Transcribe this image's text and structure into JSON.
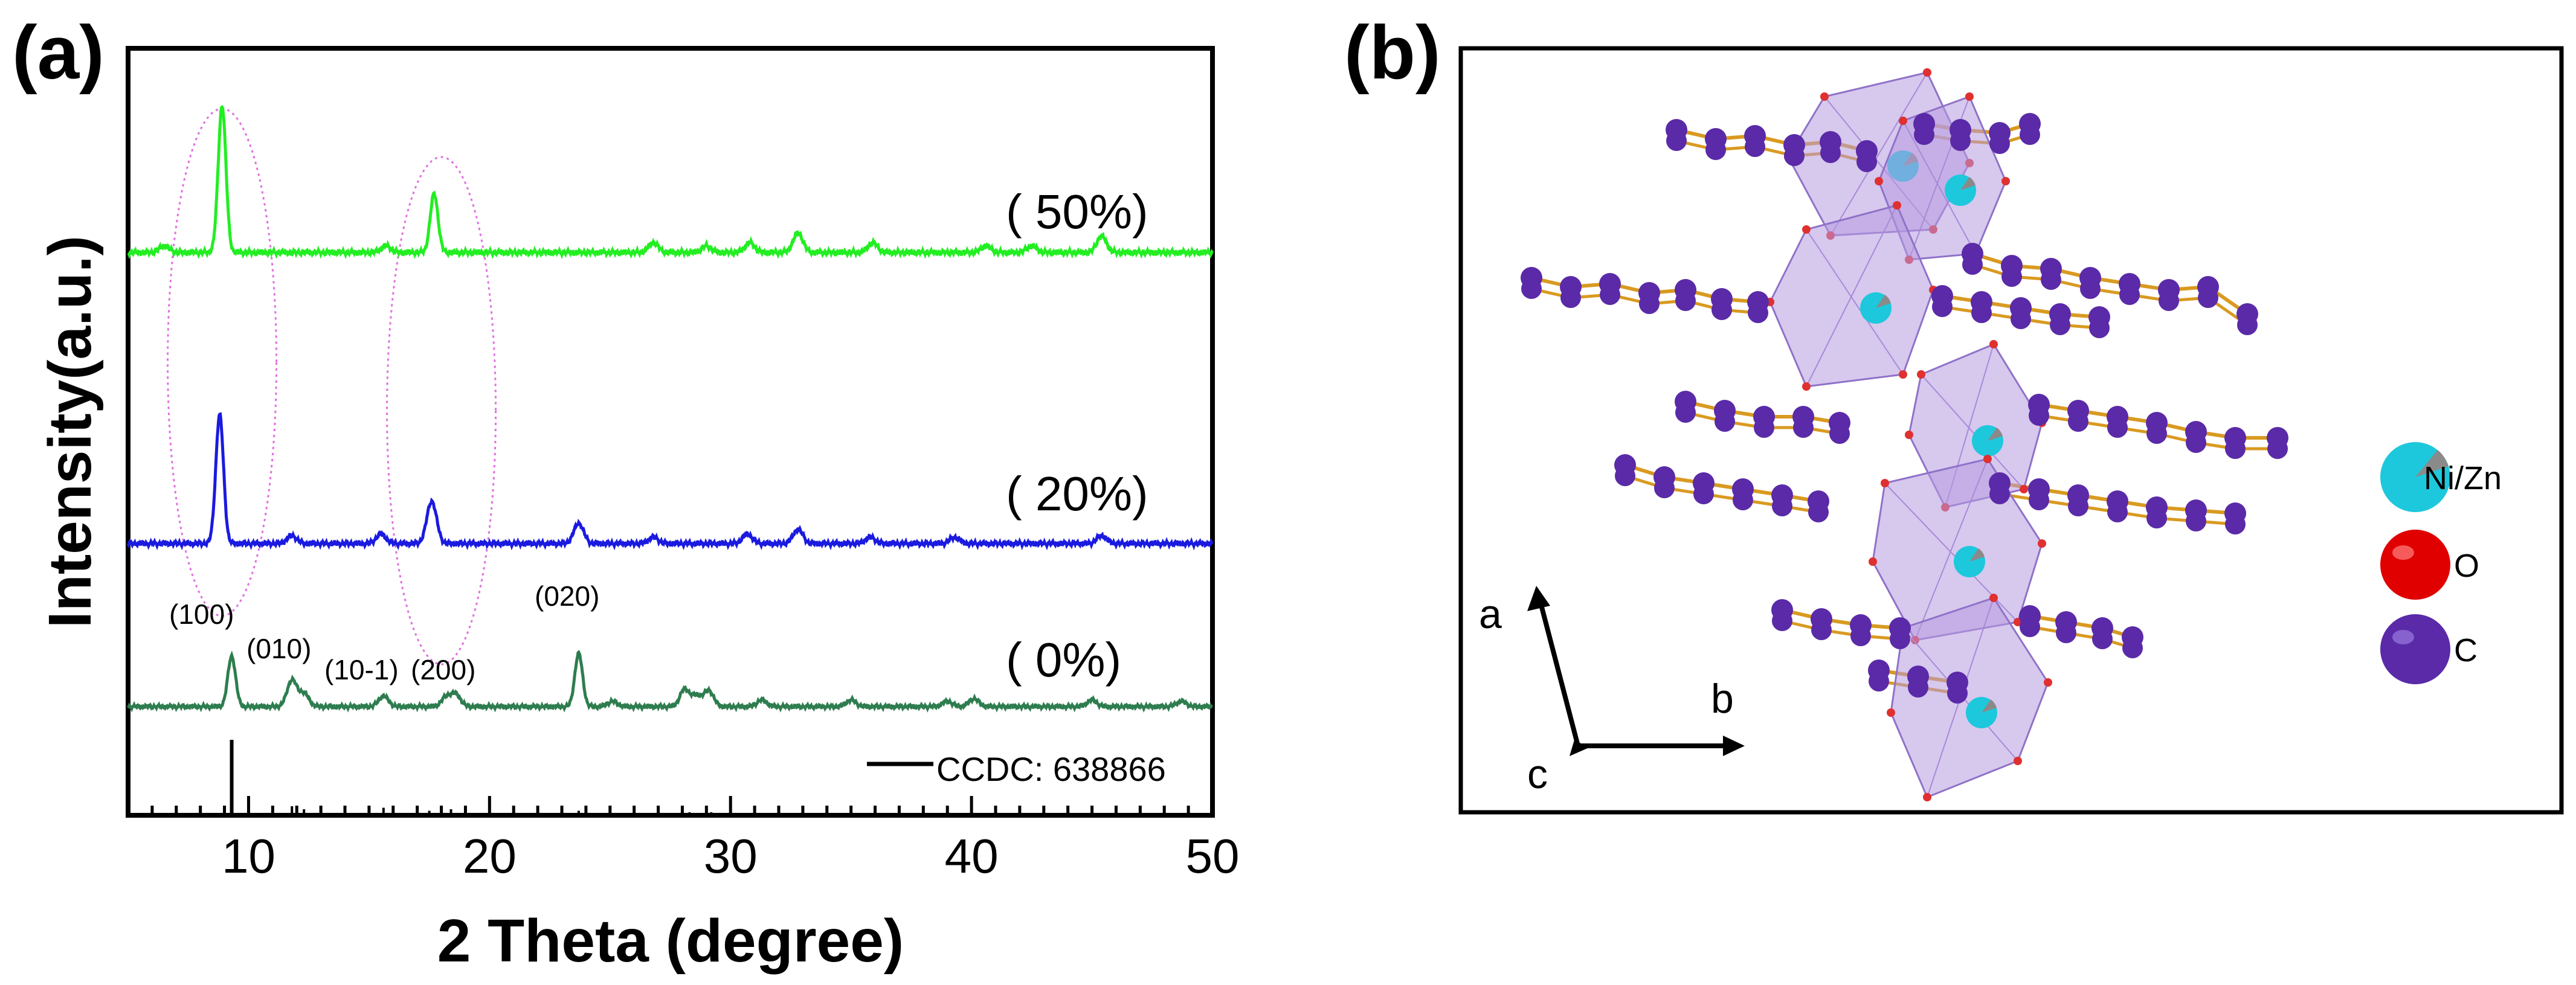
{
  "panel_a": {
    "letter": "(a)",
    "reference_label": "CCDC: 638866"
  },
  "panel_b": {
    "letter": "(b)",
    "legend": [
      {
        "label": "Ni/Zn",
        "color": "#1ec8dc",
        "accent": "#8a8a8a"
      },
      {
        "label": "O",
        "color": "#e00000"
      },
      {
        "label": "C",
        "color": "#5a2aa8"
      }
    ],
    "axes": {
      "a": "a",
      "b": "b",
      "c": "c"
    },
    "colors": {
      "polyhedron": "#b79be0",
      "bond": "#d99a20",
      "oxygen_small": "#e03030"
    }
  },
  "chart_data": {
    "type": "line",
    "xlabel": "2 Theta (degree)",
    "ylabel": "Intensity(a.u.)",
    "xlim": [
      5,
      50
    ],
    "xticks": [
      10,
      20,
      30,
      40,
      50
    ],
    "grid": false,
    "series": [
      {
        "name": "( 50%)",
        "color": "#22ee22",
        "peaks": [
          [
            6.5,
            4
          ],
          [
            8.9,
            90
          ],
          [
            15.7,
            4
          ],
          [
            17.7,
            36
          ],
          [
            26.8,
            6
          ],
          [
            29.0,
            4
          ],
          [
            30.8,
            6
          ],
          [
            32.8,
            12
          ],
          [
            35.9,
            6
          ],
          [
            40.6,
            4
          ],
          [
            42.5,
            4
          ],
          [
            45.4,
            10
          ]
        ]
      },
      {
        "name": "( 20%)",
        "color": "#1a1ae0",
        "peaks": [
          [
            8.8,
            82
          ],
          [
            11.8,
            5
          ],
          [
            15.5,
            6
          ],
          [
            17.6,
            27
          ],
          [
            23.7,
            13
          ],
          [
            26.8,
            4
          ],
          [
            30.7,
            6
          ],
          [
            32.8,
            9
          ],
          [
            35.8,
            4
          ],
          [
            39.3,
            4
          ],
          [
            45.4,
            5
          ]
        ]
      },
      {
        "name": "( 0%)",
        "color": "#2e7d4f",
        "peaks": [
          [
            9.3,
            38
          ],
          [
            11.8,
            20
          ],
          [
            12.3,
            10
          ],
          [
            15.6,
            8
          ],
          [
            18.2,
            7
          ],
          [
            18.6,
            9
          ],
          [
            23.7,
            40
          ],
          [
            25.1,
            4
          ],
          [
            28.1,
            13
          ],
          [
            28.6,
            8
          ],
          [
            29.1,
            12
          ],
          [
            31.3,
            5
          ],
          [
            35.0,
            5
          ],
          [
            39.0,
            4
          ],
          [
            40.1,
            6
          ],
          [
            45.0,
            5
          ],
          [
            48.7,
            4
          ]
        ]
      }
    ],
    "peak_labels": [
      {
        "text": "(100)",
        "x": 9.3
      },
      {
        "text": "(010)",
        "x": 11.8
      },
      {
        "text": "(10-1)",
        "x": 15.6
      },
      {
        "text": "(200)",
        "x": 18.4
      },
      {
        "text": "(020)",
        "x": 23.7
      }
    ],
    "reference": {
      "label": "CCDC: 638866",
      "sticks": [
        [
          9.3,
          100
        ],
        [
          11.8,
          12
        ],
        [
          12.3,
          8
        ],
        [
          15.6,
          10
        ],
        [
          17.5,
          6
        ],
        [
          18.4,
          8
        ],
        [
          23.7,
          6
        ],
        [
          25.0,
          3
        ],
        [
          28.3,
          4
        ],
        [
          29.2,
          4
        ],
        [
          31.3,
          3
        ],
        [
          35.1,
          3
        ],
        [
          38.5,
          3
        ],
        [
          40.2,
          3
        ],
        [
          42.0,
          3
        ],
        [
          44.7,
          3
        ],
        [
          46.9,
          3
        ],
        [
          48.6,
          3
        ]
      ]
    }
  }
}
